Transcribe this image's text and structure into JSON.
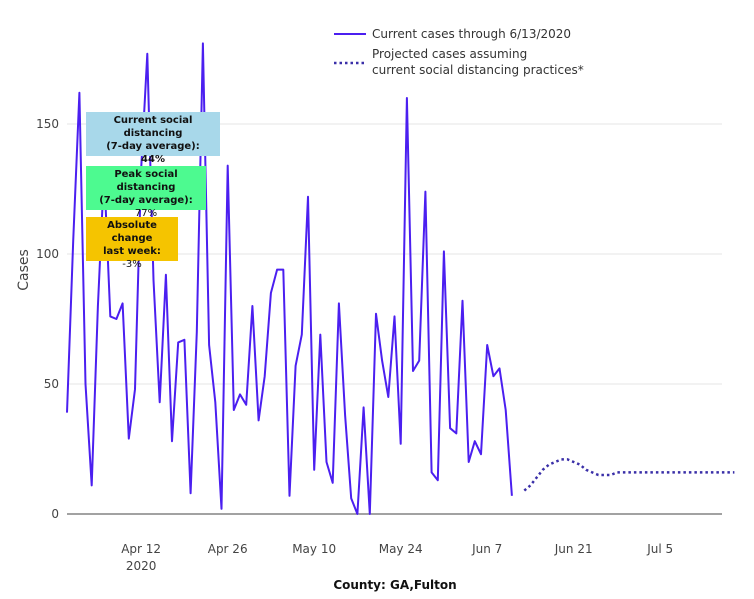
{
  "chart_data": {
    "type": "line",
    "xlabel": "County: GA,Fulton",
    "ylabel": "Cases",
    "ylim": [
      0,
      190
    ],
    "yticks": [
      0,
      50,
      100,
      150
    ],
    "xticks": [
      {
        "date": "2020-04-12",
        "label": "Apr 12",
        "sublabel": "2020"
      },
      {
        "date": "2020-04-26",
        "label": "Apr 26",
        "sublabel": ""
      },
      {
        "date": "2020-05-10",
        "label": "May 10",
        "sublabel": ""
      },
      {
        "date": "2020-05-24",
        "label": "May 24",
        "sublabel": ""
      },
      {
        "date": "2020-06-07",
        "label": "Jun 7",
        "sublabel": ""
      },
      {
        "date": "2020-06-21",
        "label": "Jun 21",
        "sublabel": ""
      },
      {
        "date": "2020-07-05",
        "label": "Jul 5",
        "sublabel": ""
      }
    ],
    "xlim": [
      "2020-03-31",
      "2020-07-15"
    ],
    "series": [
      {
        "name": "Current cases through 6/13/2020",
        "color": "#4b1ff0",
        "style": "solid",
        "start_date": "2020-03-31",
        "values": [
          39,
          105,
          162,
          50,
          11,
          80,
          132,
          76,
          75,
          81,
          29,
          48,
          133,
          177,
          90,
          43,
          92,
          28,
          66,
          67,
          8,
          70,
          181,
          65,
          43,
          2,
          134,
          40,
          46,
          42,
          80,
          36,
          53,
          85,
          94,
          94,
          7,
          57,
          69,
          122,
          17,
          69,
          20,
          12,
          81,
          38,
          6,
          0,
          41,
          0,
          77,
          59,
          45,
          76,
          27,
          160,
          55,
          59,
          124,
          16,
          13,
          101,
          33,
          31,
          82,
          20,
          28,
          23,
          65,
          53,
          56,
          40,
          7
        ]
      },
      {
        "name": "Projected cases assuming current social distancing practices*",
        "color": "#3a2fa8",
        "style": "dotted",
        "start_date": "2020-06-13",
        "values": [
          9,
          11,
          14,
          17,
          19,
          20,
          21,
          21,
          20,
          19,
          17,
          16,
          15,
          15,
          15,
          16,
          16,
          16,
          16,
          16,
          16,
          16,
          16,
          16,
          16,
          16,
          16,
          16,
          16,
          16,
          16,
          16,
          16,
          16,
          16
        ]
      }
    ],
    "legend_position": "top-right"
  },
  "legend": {
    "current_lines": [
      "Current cases through 6/13/2020"
    ],
    "projected_lines": [
      "Projected cases assuming",
      "current social distancing practices*"
    ]
  },
  "annotations": {
    "current": {
      "title": [
        "Current social distancing",
        "(7-day average):"
      ],
      "value": "44%",
      "color": "#a8d8ea"
    },
    "peak": {
      "title": [
        "Peak social distancing",
        "(7-day average):"
      ],
      "value": "77%",
      "color": "#4dfa90"
    },
    "change": {
      "title": [
        "Absolute change",
        "last week:"
      ],
      "value": "-3%",
      "color": "#f5c400"
    }
  }
}
